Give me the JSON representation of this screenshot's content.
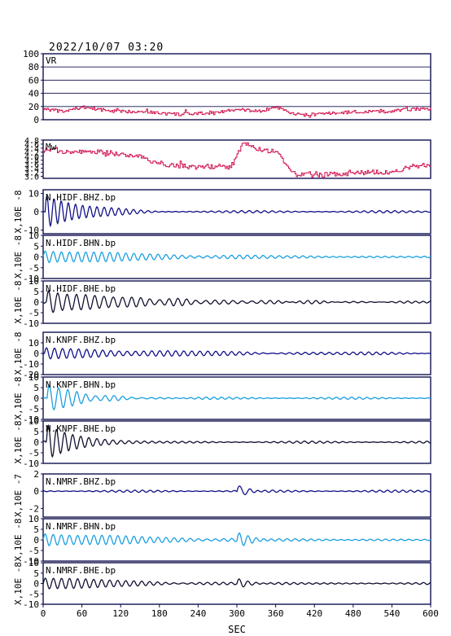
{
  "chart_data": {
    "type": "line",
    "title": "2022/10/07 03:20",
    "xlabel": "SEC",
    "xlim": [
      0,
      600
    ],
    "x_ticks": [
      "0",
      "60",
      "120",
      "180",
      "240",
      "300",
      "360",
      "420",
      "480",
      "540",
      "600"
    ],
    "colors": {
      "magenta": "#d0104c",
      "navy": "#101088",
      "cyan": "#1aa0e0",
      "black": "#101030"
    },
    "panels": [
      {
        "name": "VR",
        "kind": "vr",
        "color": "#d0104c",
        "ylim": [
          0,
          100
        ],
        "yticks": [
          "0",
          "20",
          "40",
          "60",
          "80",
          "100"
        ],
        "ylabel": "",
        "x": [
          0,
          30,
          60,
          90,
          120,
          150,
          180,
          210,
          240,
          270,
          300,
          320,
          340,
          360,
          380,
          400,
          420,
          450,
          480,
          510,
          540,
          570,
          600
        ],
        "y": [
          17,
          12,
          19,
          15,
          12,
          13,
          10,
          8,
          9,
          12,
          15,
          14,
          13,
          20,
          10,
          7,
          8,
          10,
          12,
          12,
          13,
          16,
          17
        ]
      },
      {
        "name": "Mw",
        "kind": "mw",
        "color": "#d0104c",
        "ylim": [
          2.9,
          4.8
        ],
        "yticks": [
          "3.0",
          "3.2",
          "3.4",
          "3.6",
          "3.8",
          "4.0",
          "4.2",
          "4.4",
          "4.6",
          "4.8"
        ],
        "ylabel": "",
        "x": [
          0,
          30,
          60,
          90,
          120,
          150,
          170,
          200,
          230,
          260,
          290,
          310,
          330,
          360,
          390,
          420,
          450,
          480,
          510,
          540,
          570,
          600
        ],
        "y": [
          4.3,
          4.25,
          4.2,
          4.2,
          4.1,
          4.0,
          3.7,
          3.55,
          3.45,
          3.5,
          3.45,
          4.65,
          4.4,
          4.2,
          3.1,
          3.05,
          3.1,
          3.15,
          3.2,
          3.2,
          3.5,
          3.55
        ]
      },
      {
        "name": "N.HIDF.BHZ.bp",
        "kind": "wave",
        "color": "#101088",
        "ylim": [
          -12,
          12
        ],
        "yticks": [
          "-10",
          "0",
          "10"
        ],
        "ylabel": "X,10E -8",
        "events": [
          {
            "t": 3,
            "a": 9,
            "f": 0.09,
            "d": 60
          }
        ]
      },
      {
        "name": "N.HIDF.BHN.bp",
        "kind": "wave",
        "color": "#1aa0e0",
        "ylim": [
          -10,
          10
        ],
        "yticks": [
          "-10",
          "-5",
          "0",
          "5",
          "10"
        ],
        "ylabel": "X,10E -8",
        "events": [
          {
            "t": 0,
            "a": 3,
            "f": 0.08,
            "d": 200
          }
        ]
      },
      {
        "name": "N.HIDF.BHE.bp",
        "kind": "wave",
        "color": "#101030",
        "ylim": [
          -10,
          10
        ],
        "yticks": [
          "-10",
          "-5",
          "0",
          "5",
          "10"
        ],
        "ylabel": "X,10E -8",
        "events": [
          {
            "t": 5,
            "a": 5,
            "f": 0.07,
            "d": 150
          }
        ]
      },
      {
        "name": "N.KNPF.BHZ.bp",
        "kind": "wave",
        "color": "#101088",
        "ylim": [
          -20,
          20
        ],
        "yticks": [
          "-20",
          "-10",
          "0",
          "10"
        ],
        "ylabel": "X,10E -8",
        "events": [
          {
            "t": 2,
            "a": 5,
            "f": 0.08,
            "d": 250
          }
        ]
      },
      {
        "name": "N.KNPF.BHN.bp",
        "kind": "wave",
        "color": "#1aa0e0",
        "ylim": [
          -10,
          10
        ],
        "yticks": [
          "-10",
          "-5",
          "0",
          "5",
          "10"
        ],
        "ylabel": "X,10E -8",
        "events": [
          {
            "t": 6,
            "a": 7,
            "f": 0.07,
            "d": 50
          }
        ]
      },
      {
        "name": "N.KNPF.BHE.bp",
        "kind": "wave",
        "color": "#101030",
        "ylim": [
          -10,
          10
        ],
        "yticks": [
          "-10",
          "-5",
          "0",
          "5",
          "10"
        ],
        "ylabel": "X,10E -8",
        "events": [
          {
            "t": 5,
            "a": 9,
            "f": 0.08,
            "d": 45
          }
        ]
      },
      {
        "name": "N.NMRF.BHZ.bp",
        "kind": "wave",
        "color": "#101088",
        "ylim": [
          -3,
          2
        ],
        "yticks": [
          "-2",
          "0",
          "2"
        ],
        "ylabel": "X,10E -7",
        "events": [
          {
            "t": 300,
            "a": 0.9,
            "f": 0.06,
            "d": 12
          }
        ]
      },
      {
        "name": "N.NMRF.BHN.bp",
        "kind": "wave",
        "color": "#1aa0e0",
        "ylim": [
          -10,
          10
        ],
        "yticks": [
          "-10",
          "-5",
          "0",
          "5",
          "10"
        ],
        "ylabel": "X,10E -8",
        "events": [
          {
            "t": 0,
            "a": 3,
            "f": 0.08,
            "d": 200
          },
          {
            "t": 300,
            "a": 3,
            "f": 0.07,
            "d": 20
          }
        ]
      },
      {
        "name": "N.NMRF.BHE.bp",
        "kind": "wave",
        "color": "#101030",
        "ylim": [
          -10,
          10
        ],
        "yticks": [
          "-10",
          "-5",
          "0",
          "5",
          "10"
        ],
        "ylabel": "X,10E -8",
        "events": [
          {
            "t": 0,
            "a": 3,
            "f": 0.08,
            "d": 150
          },
          {
            "t": 300,
            "a": 2,
            "f": 0.07,
            "d": 20
          }
        ]
      }
    ]
  }
}
